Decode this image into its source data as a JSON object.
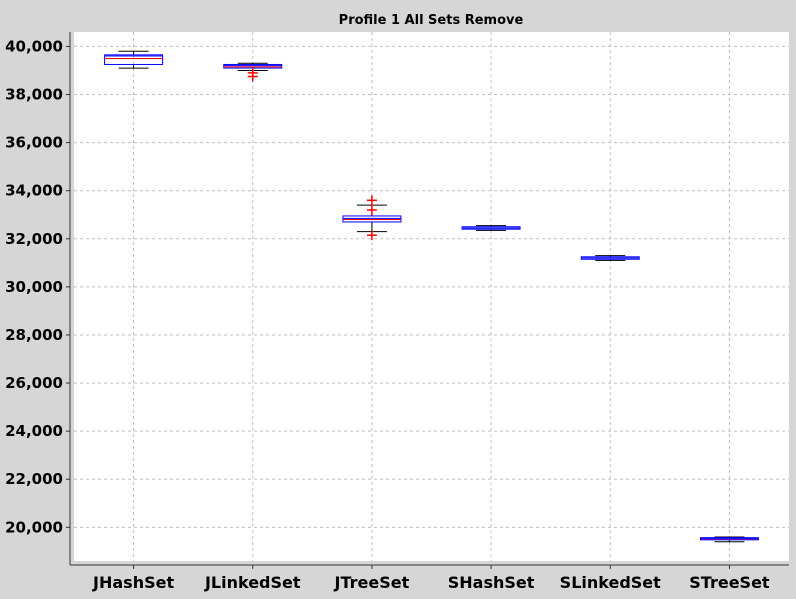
{
  "chart_data": {
    "type": "box",
    "title": "Profile 1 All Sets Remove",
    "xlabel": "",
    "ylabel": "",
    "ylim": [
      18600,
      40600
    ],
    "yticks": [
      20000,
      22000,
      24000,
      26000,
      28000,
      30000,
      32000,
      34000,
      36000,
      38000,
      40000
    ],
    "ytick_labels": [
      "20,000",
      "22,000",
      "24,000",
      "26,000",
      "28,000",
      "30,000",
      "32,000",
      "34,000",
      "36,000",
      "38,000",
      "40,000"
    ],
    "grid": true,
    "categories": [
      "JHashSet",
      "JLinkedSet",
      "JTreeSet",
      "SHashSet",
      "SLinkedSet",
      "STreeSet"
    ],
    "boxes": [
      {
        "category": "JHashSet",
        "whisker_low": 39100,
        "q1": 39250,
        "median": 39600,
        "mean": 39500,
        "q3": 39650,
        "whisker_high": 39800,
        "outliers": []
      },
      {
        "category": "JLinkedSet",
        "whisker_low": 39000,
        "q1": 39100,
        "median": 39200,
        "mean": 39150,
        "q3": 39250,
        "whisker_high": 39300,
        "outliers": [
          38750,
          38900
        ]
      },
      {
        "category": "JTreeSet",
        "whisker_low": 32300,
        "q1": 32700,
        "median": 32850,
        "mean": 32800,
        "q3": 32950,
        "whisker_high": 33400,
        "outliers": [
          32150,
          33600,
          33200
        ]
      },
      {
        "category": "SHashSet",
        "whisker_low": 32350,
        "q1": 32400,
        "median": 32450,
        "mean": 32450,
        "q3": 32500,
        "whisker_high": 32550,
        "outliers": []
      },
      {
        "category": "SLinkedSet",
        "whisker_low": 31100,
        "q1": 31150,
        "median": 31200,
        "mean": 31200,
        "q3": 31250,
        "whisker_high": 31300,
        "outliers": []
      },
      {
        "category": "STreeSet",
        "whisker_low": 19400,
        "q1": 19480,
        "median": 19530,
        "mean": 19520,
        "q3": 19570,
        "whisker_high": 19600,
        "outliers": []
      }
    ],
    "colors": {
      "background": "#d6d6d6",
      "plot_background": "#ffffff",
      "grid": "#c0c0c0",
      "box_border": "#0000ff",
      "median": "#0000ff",
      "mean": "#ff0000",
      "whisker": "#000000",
      "outlier": "#ff0000",
      "axis": "#333333"
    }
  }
}
